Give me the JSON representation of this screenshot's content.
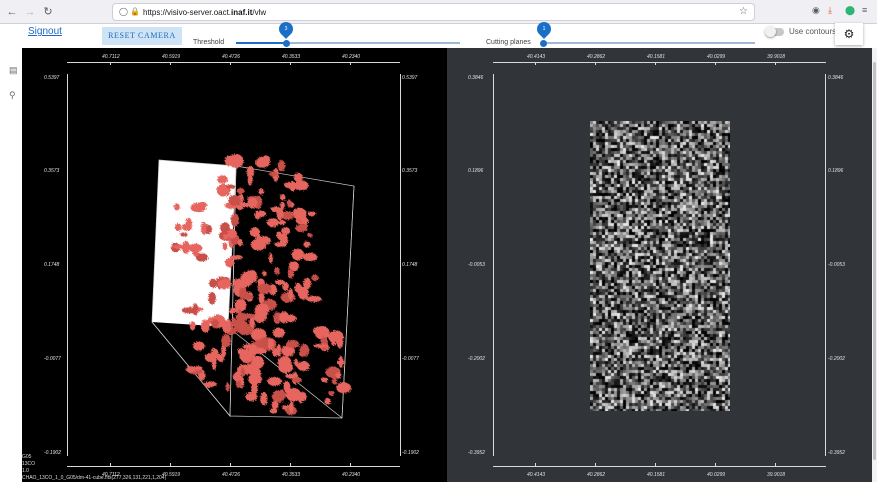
{
  "browser": {
    "url_prefix": "https://visivo-server.oact.",
    "url_bold": "inaf.it",
    "url_suffix": "/vlw",
    "back_icon": "arrow-left-icon",
    "forward_icon": "arrow-right-icon",
    "reload_icon": "reload-icon"
  },
  "toolbar": {
    "signout": "Signout",
    "reset_camera": "RESET CAMERA",
    "threshold_label": "Threshold",
    "threshold_value": "3",
    "threshold_fraction": 0.5,
    "cutting_label": "Cutting planes",
    "cutting_value": "1",
    "cutting_fraction": 0.0,
    "contours_label": "Use contours",
    "contours_on": false
  },
  "left_view": {
    "top_ticks": [
      "40.7112",
      "40.5919",
      "40.4726",
      "40.3533",
      "40.2340"
    ],
    "bottom_ticks": [
      "40.7112",
      "40.5919",
      "40.4726",
      "40.3533",
      "40.2340"
    ],
    "left_ticks": [
      "0.5397",
      "0.3573",
      "0.1748",
      "-0.0077",
      "-0.1902"
    ],
    "right_ticks": [
      "0.5397",
      "0.3573",
      "0.1748",
      "-0.0077",
      "-0.1902"
    ],
    "status": [
      "G05",
      "13CO",
      "1.0",
      "CHAO_13CO_1_0_G05/dm-41-cube.fits(277,326,131,221,1,204)"
    ],
    "surface_color": "#e6665f"
  },
  "right_view": {
    "top_ticks": [
      "40.4143",
      "40.2862",
      "40.1581",
      "40.0299",
      "39.9018"
    ],
    "bottom_ticks": [
      "40.4143",
      "40.2862",
      "40.1581",
      "40.0299",
      "39.9018"
    ],
    "left_ticks": [
      "0.3846",
      "0.1896",
      "-0.0053",
      "-0.2002",
      "-0.3952"
    ],
    "right_ticks": [
      "0.3846",
      "0.1896",
      "-0.0053",
      "-0.2002",
      "-0.3952"
    ]
  },
  "sidebar": {
    "icons": [
      "layers-icon",
      "search-icon"
    ]
  },
  "colors": {
    "accent": "#1c6fc7",
    "left_bg": "#000000",
    "right_bg": "#313439"
  }
}
